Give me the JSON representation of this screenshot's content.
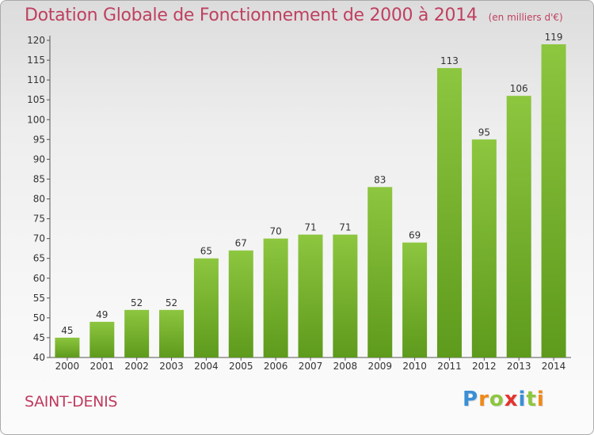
{
  "header": {
    "title": "Dotation Globale de Fonctionnement de 2000 à 2014",
    "unit": "(en milliers d'€)"
  },
  "footer": {
    "commune": "SAINT-DENIS",
    "logo_letters": [
      "P",
      "r",
      "o",
      "x",
      "i",
      "t",
      "i"
    ],
    "logo_colors": [
      "#3b8fd6",
      "#ef8a17",
      "#8dc63f",
      "#e3342f",
      "#3b8fd6",
      "#8dc63f",
      "#ef8a17"
    ]
  },
  "chart_data": {
    "type": "bar",
    "title": "Dotation Globale de Fonctionnement de 2000 à 2014",
    "subtitle": "(en milliers d'€)",
    "categories": [
      "2000",
      "2001",
      "2002",
      "2003",
      "2004",
      "2005",
      "2006",
      "2007",
      "2008",
      "2009",
      "2010",
      "2011",
      "2012",
      "2013",
      "2014"
    ],
    "values": [
      45,
      49,
      52,
      52,
      65,
      67,
      70,
      71,
      71,
      83,
      69,
      113,
      95,
      106,
      119
    ],
    "xlabel": "",
    "ylabel": "",
    "ylim": [
      40,
      120
    ],
    "yticks": [
      40,
      45,
      50,
      55,
      60,
      65,
      70,
      75,
      80,
      85,
      90,
      95,
      100,
      105,
      110,
      115,
      120
    ],
    "grid": false,
    "bar_color": "#8dc63f",
    "bar_color_dark": "#5e9a1c"
  }
}
